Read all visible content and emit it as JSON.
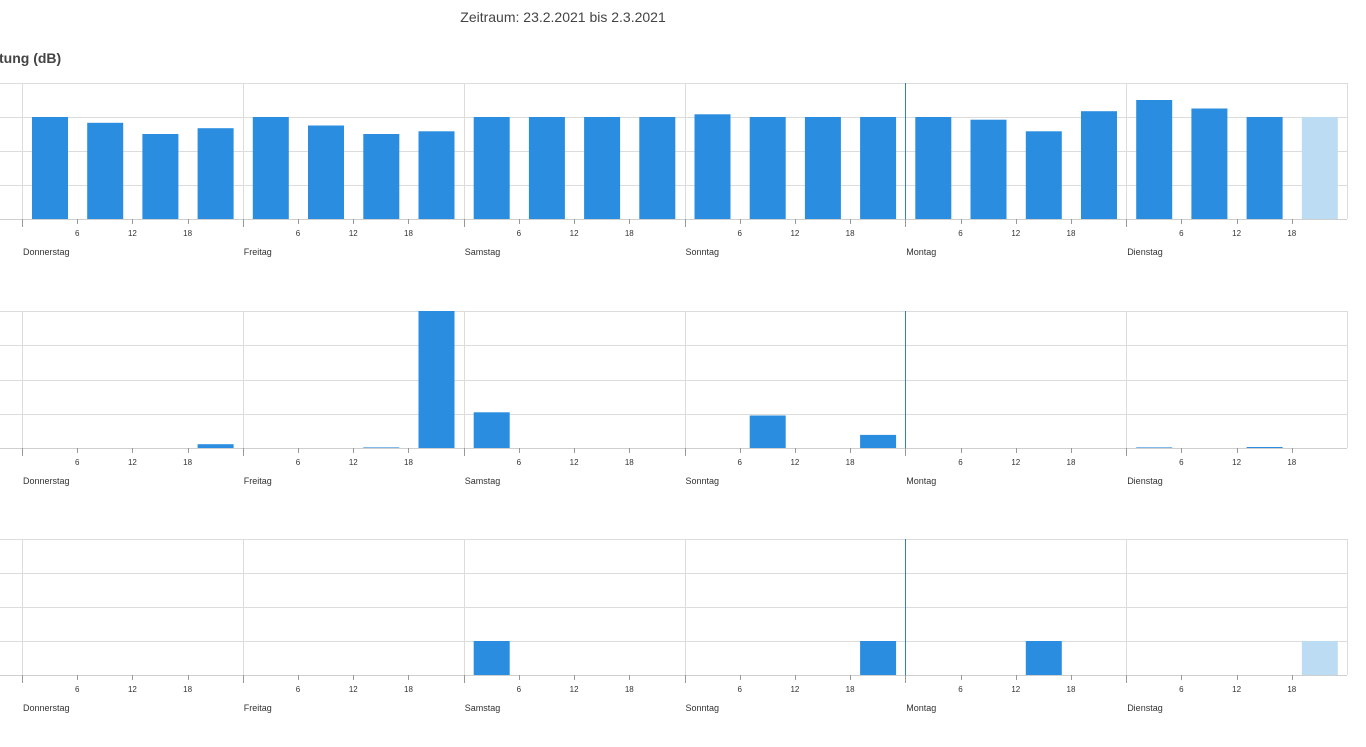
{
  "header": {
    "period": "Zeitraum: 23.2.2021 bis 2.3.2021",
    "section_title": "tung (dB)"
  },
  "colors": {
    "bar": "#2a8ddf",
    "bar_partial": "#bcdcf3",
    "grid": "#dcdcdc",
    "now_line": "#2a7fd4"
  },
  "chart_data": [
    {
      "type": "bar",
      "title": "tung (dB)",
      "days": [
        "Donnerstag",
        "Freitag",
        "Samstag",
        "Sonntag",
        "Montag",
        "Dienstag"
      ],
      "hour_ticks": [
        "6",
        "12",
        "18"
      ],
      "bins_per_day": 4,
      "ylim": [
        0,
        4
      ],
      "values": [
        3.0,
        2.83,
        2.5,
        2.67,
        3.0,
        2.75,
        2.5,
        2.58,
        3.0,
        3.0,
        3.0,
        3.0,
        3.08,
        3.0,
        3.0,
        3.0,
        3.0,
        2.92,
        2.58,
        3.17,
        3.5,
        3.25,
        3.0,
        3.0
      ],
      "partial_last_bin": true,
      "now_marker_day_index": 4
    },
    {
      "type": "bar",
      "days": [
        "Donnerstag",
        "Freitag",
        "Samstag",
        "Sonntag",
        "Montag",
        "Dienstag"
      ],
      "hour_ticks": [
        "6",
        "12",
        "18"
      ],
      "bins_per_day": 4,
      "ylim": [
        0,
        4.3
      ],
      "values": [
        0,
        0,
        0,
        0.12,
        0,
        0,
        0.02,
        4.3,
        1.12,
        0,
        0,
        0,
        0,
        1.02,
        0,
        0.41,
        0,
        0,
        0,
        0,
        0.02,
        0,
        0.03,
        0
      ],
      "partial_last_bin": false,
      "now_marker_day_index": 4
    },
    {
      "type": "bar",
      "days": [
        "Donnerstag",
        "Freitag",
        "Samstag",
        "Sonntag",
        "Montag",
        "Dienstag"
      ],
      "hour_ticks": [
        "6",
        "12",
        "18"
      ],
      "bins_per_day": 4,
      "ylim": [
        0,
        4
      ],
      "values": [
        0,
        0,
        0,
        0,
        0,
        0,
        0,
        0,
        1,
        0,
        0,
        0,
        0,
        0,
        0,
        1,
        0,
        0,
        1,
        0,
        0,
        0,
        0,
        1
      ],
      "partial_last_bin": true,
      "now_marker_day_index": 4
    }
  ]
}
